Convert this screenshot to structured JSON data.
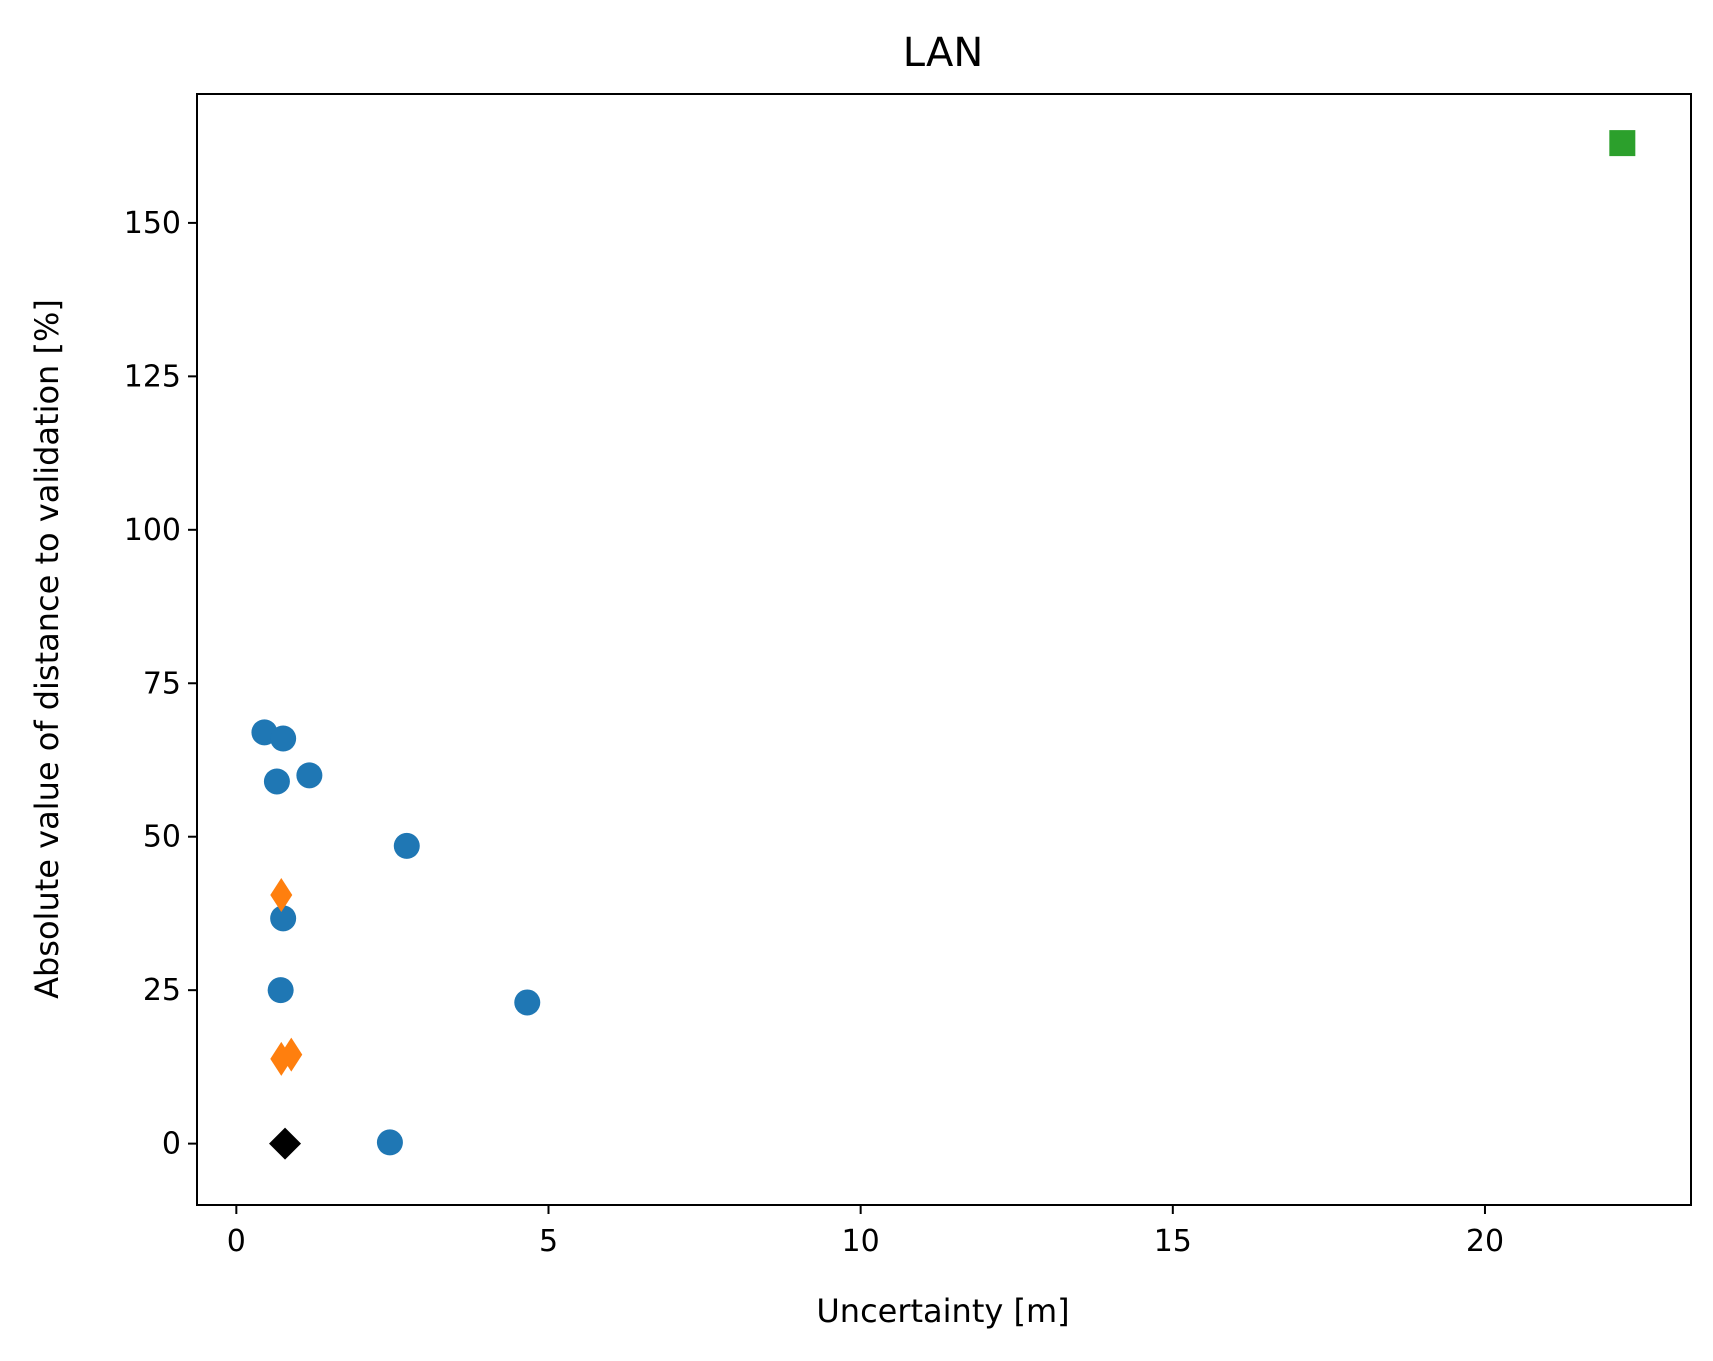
{
  "chart_data": {
    "type": "scatter",
    "title": "LAN",
    "xlabel": "Uncertainty [m]",
    "ylabel": "Absolute value of distance to validation [%]",
    "xlim": [
      -0.63,
      23.3
    ],
    "ylim": [
      -10,
      171
    ],
    "xticks": [
      0,
      5,
      10,
      15,
      20
    ],
    "yticks": [
      0,
      25,
      50,
      75,
      100,
      125,
      150
    ],
    "grid": false,
    "legend": "none",
    "series": [
      {
        "marker": "circle",
        "color": "#1f77b4",
        "points": [
          {
            "x": 0.45,
            "y": 67
          },
          {
            "x": 0.75,
            "y": 66
          },
          {
            "x": 0.65,
            "y": 59
          },
          {
            "x": 1.17,
            "y": 60
          },
          {
            "x": 2.73,
            "y": 48.5
          },
          {
            "x": 0.75,
            "y": 36.7
          },
          {
            "x": 0.71,
            "y": 25
          },
          {
            "x": 4.66,
            "y": 23
          },
          {
            "x": 2.46,
            "y": 0.2
          }
        ]
      },
      {
        "marker": "thin_diamond",
        "color": "#ff7f0e",
        "points": [
          {
            "x": 0.72,
            "y": 40.5
          },
          {
            "x": 0.72,
            "y": 13.8
          },
          {
            "x": 0.88,
            "y": 14.5
          }
        ]
      },
      {
        "marker": "square",
        "color": "#2ca02c",
        "points": [
          {
            "x": 22.2,
            "y": 163
          }
        ]
      },
      {
        "marker": "diamond",
        "color": "#000000",
        "points": [
          {
            "x": 0.78,
            "y": 0
          }
        ]
      }
    ]
  }
}
